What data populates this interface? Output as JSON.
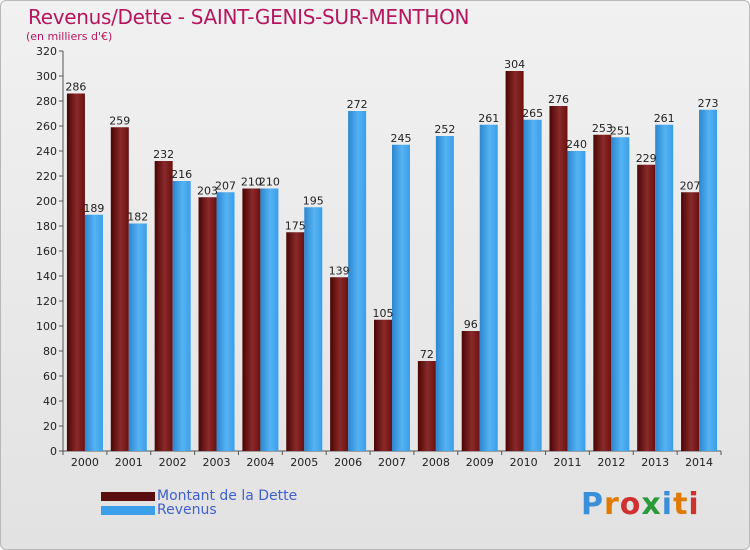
{
  "header": {
    "title": "Revenus/Dette - SAINT-GENIS-SUR-MENTHON",
    "subtitle": "(en milliers d'€)"
  },
  "legend": {
    "items": [
      {
        "label": "Montant de la Dette",
        "color": "#7a1a1a"
      },
      {
        "label": "Revenus",
        "color": "#3a9ee8"
      }
    ]
  },
  "logo": {
    "text": "Proxiti",
    "letter_colors": [
      "#3a8fd8",
      "#e07b00",
      "#d03030",
      "#2a9a3a",
      "#3a8fd8",
      "#e07b00",
      "#d03030"
    ]
  },
  "chart_data": {
    "type": "bar",
    "title": "Revenus/Dette - SAINT-GENIS-SUR-MENTHON",
    "ylabel": "(en milliers d'€)",
    "ylim": [
      0,
      320
    ],
    "yticks": [
      0,
      20,
      40,
      60,
      80,
      100,
      120,
      140,
      160,
      180,
      200,
      220,
      240,
      260,
      280,
      300,
      320
    ],
    "grid": false,
    "categories": [
      "2000",
      "2001",
      "2002",
      "2003",
      "2004",
      "2005",
      "2006",
      "2007",
      "2008",
      "2009",
      "2010",
      "2011",
      "2012",
      "2013",
      "2014"
    ],
    "series": [
      {
        "name": "Montant de la Dette",
        "color": "#7a1a1a",
        "values": [
          286,
          259,
          232,
          203,
          210,
          175,
          139,
          105,
          72,
          96,
          304,
          276,
          253,
          229,
          207
        ]
      },
      {
        "name": "Revenus",
        "color": "#3a9ee8",
        "values": [
          189,
          182,
          216,
          207,
          210,
          195,
          272,
          245,
          252,
          261,
          265,
          240,
          251,
          261,
          273
        ]
      }
    ]
  }
}
